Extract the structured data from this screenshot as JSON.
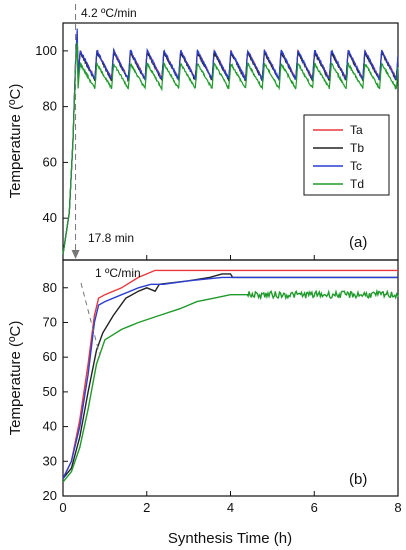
{
  "chart_data": [
    {
      "id": "a",
      "type": "line",
      "panel_label": "(a)",
      "ylabel": "Temperature (ºC)",
      "ylim": [
        25,
        110
      ],
      "yticks": [
        40,
        60,
        80,
        100
      ],
      "xlim": [
        0,
        8
      ],
      "annotations": [
        "4.2 ºC/min",
        "17.8 min"
      ],
      "vline_x": 0.3,
      "legend": {
        "position": "center-right",
        "entries": [
          "Ta",
          "Tb",
          "Tc",
          "Td"
        ]
      },
      "series": [
        {
          "name": "Ta",
          "color": "#e8383d",
          "ramp": [
            [
              0,
              27
            ],
            [
              0.15,
              42
            ],
            [
              0.24,
              68
            ],
            [
              0.3,
              96
            ],
            [
              0.34,
              107
            ]
          ],
          "base": 95,
          "amp": 10,
          "period": 0.4,
          "start": 0.36,
          "end": 8
        },
        {
          "name": "Tb",
          "color": "#222222",
          "ramp": [
            [
              0,
              27
            ],
            [
              0.15,
              42
            ],
            [
              0.24,
              68
            ],
            [
              0.3,
              96
            ],
            [
              0.34,
              105
            ]
          ],
          "base": 94.5,
          "amp": 10,
          "period": 0.4,
          "start": 0.36,
          "end": 8
        },
        {
          "name": "Tc",
          "color": "#2a3fd0",
          "ramp": [
            [
              0,
              27
            ],
            [
              0.15,
              42
            ],
            [
              0.24,
              68
            ],
            [
              0.3,
              97
            ],
            [
              0.34,
              108
            ]
          ],
          "base": 95,
          "amp": 10.5,
          "period": 0.4,
          "start": 0.36,
          "end": 8
        },
        {
          "name": "Td",
          "color": "#1f9a2b",
          "ramp": [
            [
              0,
              27
            ],
            [
              0.15,
              42
            ],
            [
              0.24,
              68
            ],
            [
              0.3,
              94
            ],
            [
              0.34,
              103
            ]
          ],
          "base": 91,
          "amp": 9,
          "period": 0.4,
          "start": 0.36,
          "end": 8
        }
      ]
    },
    {
      "id": "b",
      "type": "line",
      "panel_label": "(b)",
      "xlabel": "Synthesis Time (h)",
      "ylabel": "Temperature (ºC)",
      "ylim": [
        20,
        88
      ],
      "yticks": [
        20,
        30,
        40,
        50,
        60,
        70,
        80
      ],
      "xlim": [
        0,
        8
      ],
      "xticks": [
        0,
        2,
        4,
        6,
        8
      ],
      "annotations": [
        "1 ºC/min"
      ],
      "series": [
        {
          "name": "Ta",
          "color": "#e8383d",
          "points": [
            [
              0,
              25
            ],
            [
              0.2,
              30
            ],
            [
              0.4,
              42
            ],
            [
              0.6,
              58
            ],
            [
              0.75,
              72
            ],
            [
              0.85,
              77
            ],
            [
              1.0,
              78
            ],
            [
              1.4,
              80
            ],
            [
              1.8,
              83
            ],
            [
              2.2,
              85
            ],
            [
              2.5,
              85
            ],
            [
              8,
              85
            ]
          ]
        },
        {
          "name": "Tb",
          "color": "#222222",
          "points": [
            [
              0,
              25
            ],
            [
              0.2,
              28
            ],
            [
              0.4,
              37
            ],
            [
              0.6,
              50
            ],
            [
              0.8,
              62
            ],
            [
              0.95,
              67
            ],
            [
              1.2,
              72
            ],
            [
              1.5,
              77
            ],
            [
              1.8,
              79
            ],
            [
              2.0,
              80
            ],
            [
              2.2,
              79
            ],
            [
              2.3,
              81
            ],
            [
              3.0,
              82
            ],
            [
              3.5,
              83
            ],
            [
              3.8,
              84
            ],
            [
              4.0,
              84
            ],
            [
              4.05,
              83
            ],
            [
              8,
              83
            ]
          ]
        },
        {
          "name": "Tc",
          "color": "#2a3fd0",
          "points": [
            [
              0,
              25
            ],
            [
              0.2,
              30
            ],
            [
              0.4,
              40
            ],
            [
              0.6,
              55
            ],
            [
              0.75,
              70
            ],
            [
              0.85,
              75
            ],
            [
              1.0,
              76
            ],
            [
              1.4,
              78
            ],
            [
              1.8,
              80
            ],
            [
              2.1,
              81
            ],
            [
              2.4,
              81
            ],
            [
              3.0,
              82
            ],
            [
              3.8,
              83
            ],
            [
              4.05,
              83
            ],
            [
              8,
              83
            ]
          ]
        },
        {
          "name": "Td",
          "color": "#1f9a2b",
          "points": [
            [
              0,
              24
            ],
            [
              0.2,
              27
            ],
            [
              0.4,
              34
            ],
            [
              0.6,
              45
            ],
            [
              0.8,
              58
            ],
            [
              1.0,
              65
            ],
            [
              1.4,
              68
            ],
            [
              1.8,
              70
            ],
            [
              2.3,
              72
            ],
            [
              2.8,
              74
            ],
            [
              3.2,
              76
            ],
            [
              3.6,
              77
            ],
            [
              4.0,
              78
            ],
            [
              4.4,
              78
            ],
            [
              8,
              78
            ]
          ],
          "noise_after": 4.4,
          "noise_amp": 1.0
        }
      ]
    }
  ]
}
